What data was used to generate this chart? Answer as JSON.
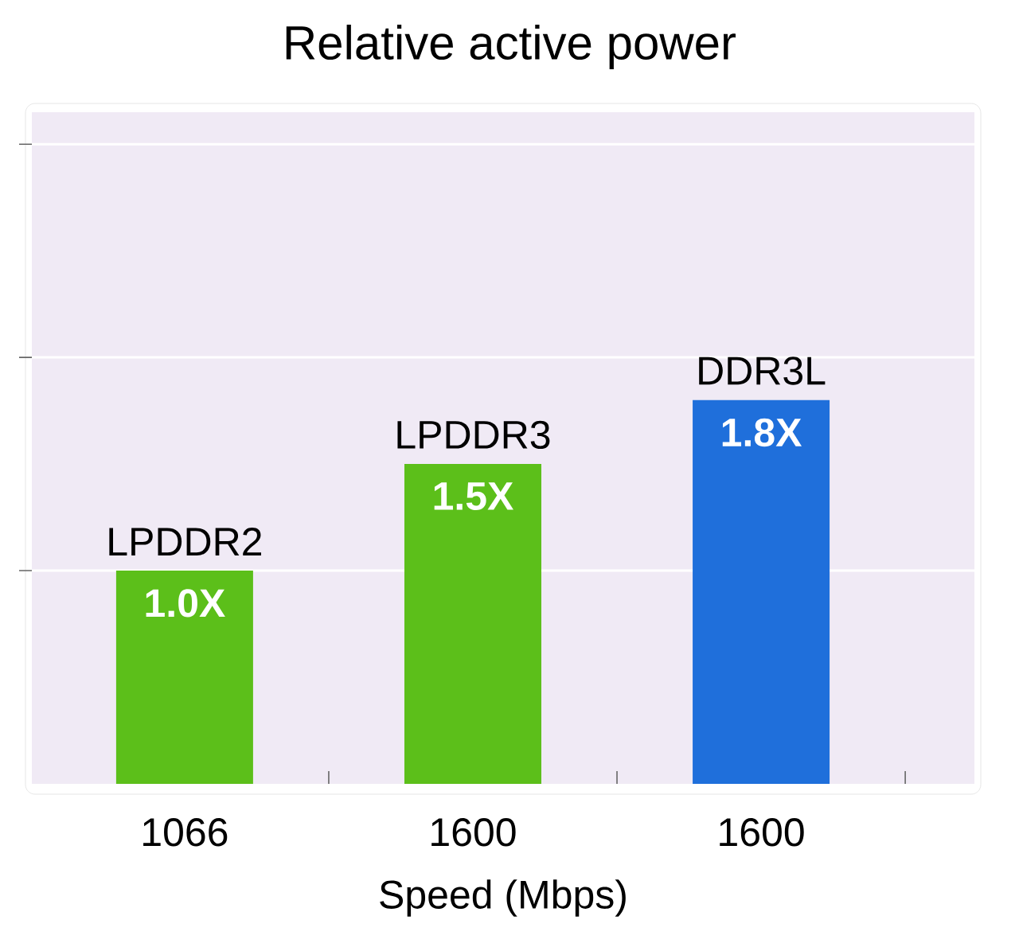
{
  "chart_data": {
    "type": "bar",
    "title": "Relative active power",
    "xlabel": "Speed (Mbps)",
    "categories": [
      "1066",
      "1600",
      "1600"
    ],
    "series": [
      {
        "name": "LPDDR2",
        "color": "#5cbf1a",
        "values": [
          1.0,
          null,
          null
        ],
        "value_labels": [
          "1.0X",
          null,
          null
        ]
      },
      {
        "name": "LPDDR3",
        "color": "#5cbf1a",
        "values": [
          null,
          1.5,
          null
        ],
        "value_labels": [
          null,
          "1.5X",
          null
        ]
      },
      {
        "name": "DDR3L",
        "color": "#1f6fdb",
        "values": [
          null,
          null,
          1.8
        ],
        "value_labels": [
          null,
          null,
          "1.8X"
        ]
      }
    ],
    "ylim": [
      0,
      3.15
    ],
    "yticks": [
      {
        "value": 1,
        "label": null
      },
      {
        "value": 2,
        "label": null
      },
      {
        "value": 3,
        "label": null
      }
    ],
    "tick_labels": "x",
    "grid": "y"
  }
}
